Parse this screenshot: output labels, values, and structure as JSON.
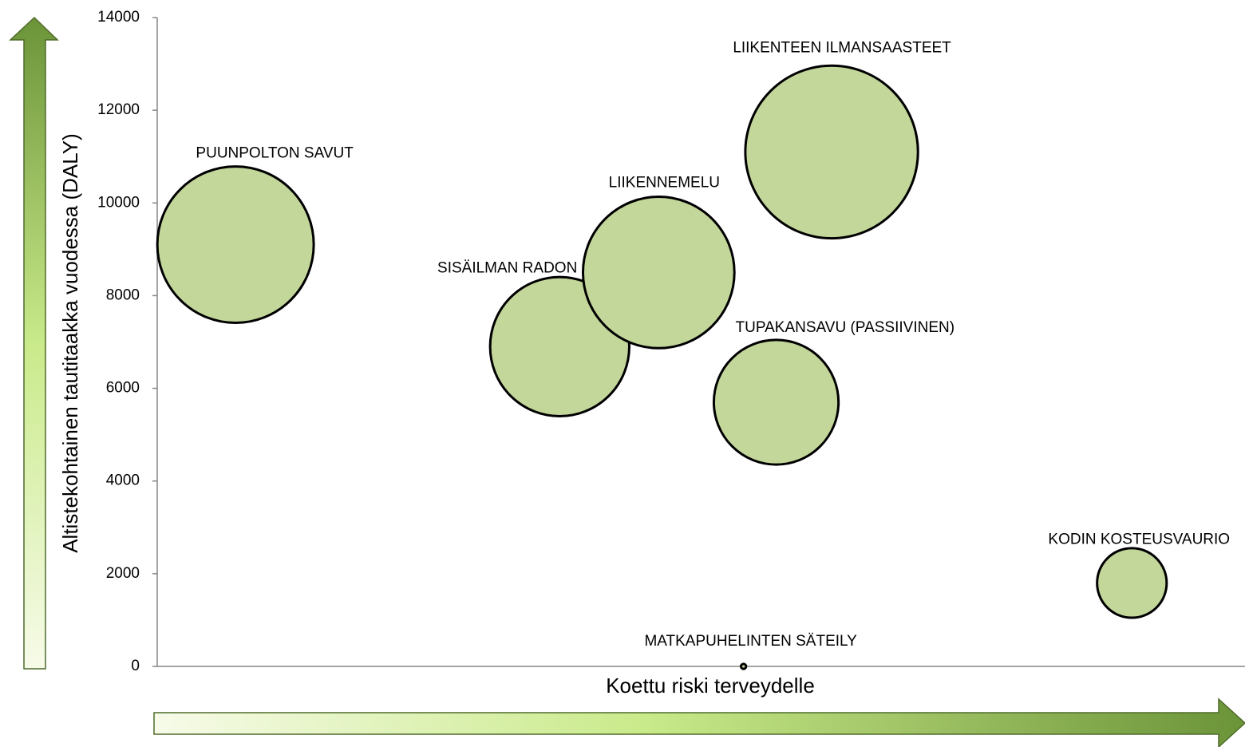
{
  "chart_data": {
    "type": "scatter",
    "x_label": "Koettu riski terveydelle",
    "y_label": "Altistekohtainen tautitaakka vuodessa (DALY)",
    "labels": [
      "PUUNPOLTON SAVUT",
      "SISÄILMAN RADON",
      "LIIKENNEMELU",
      "LIIKENTEEN ILMANSAASTEET",
      "TUPAKANSAVU (PASSIIVINEN)",
      "KODIN KOSTEUSVAURIO",
      "MATKAPUHELINTEN SÄTEILY"
    ],
    "x": [
      0.72,
      3.7,
      4.61,
      6.2,
      5.69,
      8.96,
      5.39
    ],
    "values": [
      9100,
      6900,
      8500,
      11100,
      5700,
      1800,
      0
    ],
    "sizes": [
      96,
      76,
      90,
      117,
      61,
      19,
      0.1
    ],
    "color": "#c4d79b",
    "xlim": [
      0,
      10
    ],
    "ylim": [
      0,
      14000
    ],
    "yticks": [
      0,
      2000,
      4000,
      6000,
      8000,
      10000,
      12000,
      14000
    ]
  }
}
